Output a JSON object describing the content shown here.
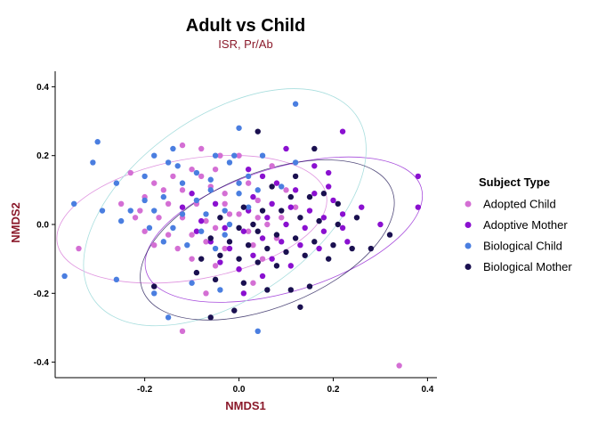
{
  "chart_data": {
    "type": "scatter",
    "title": "Adult vs Child",
    "subtitle": "ISR, Pr/Ab",
    "xlabel": "NMDS1",
    "ylabel": "NMDS2",
    "xlim": [
      -0.39,
      0.42
    ],
    "ylim": [
      -0.445,
      0.445
    ],
    "x_ticks": [
      -0.2,
      0.0,
      0.2,
      0.4
    ],
    "y_ticks": [
      -0.4,
      -0.2,
      0.0,
      0.2,
      0.4
    ],
    "x_tick_labels": [
      "-0.2",
      "0.0",
      "0.2",
      "0.4"
    ],
    "y_tick_labels": [
      "-0.4",
      "-0.2",
      "0.0",
      "0.2",
      "0.4"
    ],
    "grid": false,
    "legend_title": "Subject Type",
    "legend_position": "right",
    "series": [
      {
        "name": "Adopted Child",
        "color": "#d46fd4",
        "ellipse": {
          "cx": -0.1,
          "cy": 0.015,
          "rx": 0.29,
          "ry": 0.175,
          "angle": 10
        },
        "points": [
          [
            -0.12,
            0.23
          ],
          [
            -0.08,
            0.22
          ],
          [
            -0.05,
            0.16
          ],
          [
            -0.1,
            0.16
          ],
          [
            -0.14,
            0.14
          ],
          [
            -0.18,
            0.12
          ],
          [
            -0.12,
            0.1
          ],
          [
            -0.06,
            0.11
          ],
          [
            -0.03,
            0.09
          ],
          [
            0.02,
            0.12
          ],
          [
            0.07,
            0.17
          ],
          [
            0.1,
            0.1
          ],
          [
            -0.2,
            0.08
          ],
          [
            -0.25,
            0.06
          ],
          [
            -0.15,
            0.06
          ],
          [
            -0.09,
            0.06
          ],
          [
            -0.03,
            0.06
          ],
          [
            0.0,
            0.03
          ],
          [
            -0.22,
            0.02
          ],
          [
            -0.17,
            0.02
          ],
          [
            -0.12,
            0.02
          ],
          [
            -0.07,
            0.01
          ],
          [
            -0.02,
            0.03
          ],
          [
            0.04,
            0.02
          ],
          [
            -0.2,
            -0.02
          ],
          [
            -0.15,
            -0.03
          ],
          [
            -0.1,
            -0.03
          ],
          [
            -0.05,
            -0.01
          ],
          [
            0.02,
            -0.02
          ],
          [
            0.06,
            0.0
          ],
          [
            -0.18,
            -0.06
          ],
          [
            -0.13,
            -0.07
          ],
          [
            -0.07,
            -0.05
          ],
          [
            -0.03,
            -0.07
          ],
          [
            0.03,
            -0.06
          ],
          [
            0.08,
            -0.04
          ],
          [
            -0.1,
            -0.1
          ],
          [
            -0.05,
            -0.12
          ],
          [
            0.0,
            -0.13
          ],
          [
            0.05,
            -0.1
          ],
          [
            -0.07,
            -0.2
          ],
          [
            0.03,
            -0.17
          ],
          [
            -0.34,
            -0.07
          ],
          [
            -0.12,
            -0.31
          ],
          [
            0.34,
            -0.41
          ],
          [
            0.09,
            0.02
          ],
          [
            -0.16,
            0.1
          ],
          [
            -0.08,
            0.14
          ],
          [
            0.0,
            0.2
          ],
          [
            0.04,
            0.07
          ],
          [
            -0.21,
            0.04
          ],
          [
            0.12,
            0.05
          ],
          [
            -0.23,
            0.15
          ],
          [
            -0.04,
            0.2
          ]
        ]
      },
      {
        "name": "Adoptive Mother",
        "color": "#8a10d0",
        "ellipse": {
          "cx": 0.095,
          "cy": -0.015,
          "rx": 0.305,
          "ry": 0.18,
          "angle": 17
        },
        "points": [
          [
            0.22,
            0.27
          ],
          [
            0.1,
            0.22
          ],
          [
            0.16,
            0.17
          ],
          [
            0.19,
            0.15
          ],
          [
            0.05,
            0.14
          ],
          [
            0.08,
            0.12
          ],
          [
            0.12,
            0.1
          ],
          [
            0.16,
            0.09
          ],
          [
            0.2,
            0.07
          ],
          [
            0.03,
            0.08
          ],
          [
            0.07,
            0.06
          ],
          [
            0.11,
            0.05
          ],
          [
            0.15,
            0.04
          ],
          [
            0.18,
            0.02
          ],
          [
            0.22,
            0.03
          ],
          [
            0.26,
            0.05
          ],
          [
            -0.1,
            0.09
          ],
          [
            -0.05,
            0.06
          ],
          [
            0.02,
            0.04
          ],
          [
            0.06,
            0.02
          ],
          [
            0.1,
            0.0
          ],
          [
            0.14,
            -0.01
          ],
          [
            0.18,
            -0.02
          ],
          [
            0.22,
            -0.01
          ],
          [
            -0.08,
            0.01
          ],
          [
            -0.03,
            -0.01
          ],
          [
            0.01,
            -0.02
          ],
          [
            0.05,
            -0.04
          ],
          [
            0.09,
            -0.05
          ],
          [
            0.13,
            -0.06
          ],
          [
            0.17,
            -0.07
          ],
          [
            -0.06,
            -0.05
          ],
          [
            -0.02,
            -0.07
          ],
          [
            0.03,
            -0.09
          ],
          [
            0.07,
            -0.1
          ],
          [
            0.11,
            -0.12
          ],
          [
            -0.04,
            -0.11
          ],
          [
            0.0,
            -0.13
          ],
          [
            0.05,
            -0.15
          ],
          [
            0.01,
            -0.2
          ],
          [
            0.38,
            0.14
          ],
          [
            0.38,
            0.05
          ],
          [
            0.3,
            0.0
          ],
          [
            0.23,
            -0.05
          ],
          [
            -0.12,
            0.05
          ],
          [
            -0.09,
            -0.02
          ],
          [
            0.02,
            0.16
          ],
          [
            0.19,
            0.11
          ]
        ]
      },
      {
        "name": "Biological Child",
        "color": "#4a7ee0",
        "ellipse": {
          "cx": -0.03,
          "cy": 0.05,
          "rx": 0.34,
          "ry": 0.265,
          "angle": 35
        },
        "points": [
          [
            0.12,
            0.35
          ],
          [
            -0.3,
            0.24
          ],
          [
            0.0,
            0.28
          ],
          [
            -0.05,
            0.2
          ],
          [
            -0.14,
            0.22
          ],
          [
            -0.18,
            0.2
          ],
          [
            -0.31,
            0.18
          ],
          [
            -0.15,
            0.18
          ],
          [
            -0.09,
            0.15
          ],
          [
            -0.01,
            0.2
          ],
          [
            0.02,
            0.14
          ],
          [
            0.05,
            0.2
          ],
          [
            -0.2,
            0.14
          ],
          [
            -0.12,
            0.12
          ],
          [
            -0.06,
            0.1
          ],
          [
            0.0,
            0.09
          ],
          [
            -0.26,
            0.12
          ],
          [
            -0.16,
            0.08
          ],
          [
            -0.09,
            0.07
          ],
          [
            -0.03,
            0.04
          ],
          [
            0.02,
            0.05
          ],
          [
            -0.23,
            0.04
          ],
          [
            -0.18,
            0.04
          ],
          [
            -0.12,
            0.03
          ],
          [
            -0.07,
            0.03
          ],
          [
            -0.02,
            0.0
          ],
          [
            -0.29,
            0.04
          ],
          [
            -0.19,
            -0.01
          ],
          [
            -0.14,
            -0.01
          ],
          [
            -0.08,
            -0.02
          ],
          [
            -0.03,
            -0.03
          ],
          [
            -0.16,
            -0.05
          ],
          [
            -0.11,
            -0.06
          ],
          [
            -0.05,
            -0.07
          ],
          [
            -0.26,
            -0.16
          ],
          [
            -0.18,
            -0.2
          ],
          [
            -0.1,
            -0.17
          ],
          [
            -0.04,
            -0.19
          ],
          [
            -0.15,
            -0.27
          ],
          [
            0.04,
            -0.31
          ],
          [
            -0.35,
            0.06
          ],
          [
            -0.37,
            -0.15
          ],
          [
            0.09,
            0.11
          ],
          [
            0.12,
            0.18
          ],
          [
            -0.02,
            0.18
          ],
          [
            -0.13,
            0.17
          ],
          [
            -0.06,
            0.13
          ],
          [
            -0.2,
            0.07
          ],
          [
            -0.25,
            0.01
          ],
          [
            0.04,
            0.1
          ],
          [
            0.0,
            0.12
          ]
        ]
      },
      {
        "name": "Biological Mother",
        "color": "#1a1050",
        "ellipse": {
          "cx": 0.06,
          "cy": -0.045,
          "rx": 0.285,
          "ry": 0.195,
          "angle": 22
        },
        "points": [
          [
            0.04,
            0.27
          ],
          [
            0.16,
            0.22
          ],
          [
            0.12,
            0.14
          ],
          [
            0.07,
            0.11
          ],
          [
            0.15,
            0.08
          ],
          [
            0.21,
            0.06
          ],
          [
            0.01,
            0.05
          ],
          [
            0.05,
            0.04
          ],
          [
            0.09,
            0.04
          ],
          [
            0.13,
            0.02
          ],
          [
            0.17,
            0.01
          ],
          [
            0.21,
            0.0
          ],
          [
            0.25,
            0.02
          ],
          [
            -0.04,
            0.02
          ],
          [
            0.0,
            -0.01
          ],
          [
            0.04,
            -0.02
          ],
          [
            0.08,
            -0.03
          ],
          [
            0.12,
            -0.04
          ],
          [
            0.16,
            -0.05
          ],
          [
            0.2,
            -0.06
          ],
          [
            -0.06,
            -0.04
          ],
          [
            -0.02,
            -0.05
          ],
          [
            0.02,
            -0.06
          ],
          [
            0.06,
            -0.07
          ],
          [
            0.1,
            -0.08
          ],
          [
            0.14,
            -0.09
          ],
          [
            0.19,
            -0.1
          ],
          [
            0.24,
            -0.07
          ],
          [
            -0.04,
            -0.09
          ],
          [
            0.0,
            -0.1
          ],
          [
            0.04,
            -0.11
          ],
          [
            0.08,
            -0.12
          ],
          [
            -0.09,
            -0.14
          ],
          [
            -0.05,
            -0.16
          ],
          [
            0.01,
            -0.17
          ],
          [
            0.06,
            -0.19
          ],
          [
            0.11,
            -0.19
          ],
          [
            0.15,
            -0.18
          ],
          [
            -0.18,
            -0.18
          ],
          [
            -0.06,
            -0.27
          ],
          [
            0.32,
            -0.03
          ],
          [
            0.28,
            -0.07
          ],
          [
            0.13,
            -0.24
          ],
          [
            -0.01,
            -0.25
          ],
          [
            -0.08,
            -0.1
          ],
          [
            0.18,
            0.09
          ],
          [
            0.11,
            0.08
          ],
          [
            0.03,
            0.0
          ]
        ]
      }
    ]
  }
}
